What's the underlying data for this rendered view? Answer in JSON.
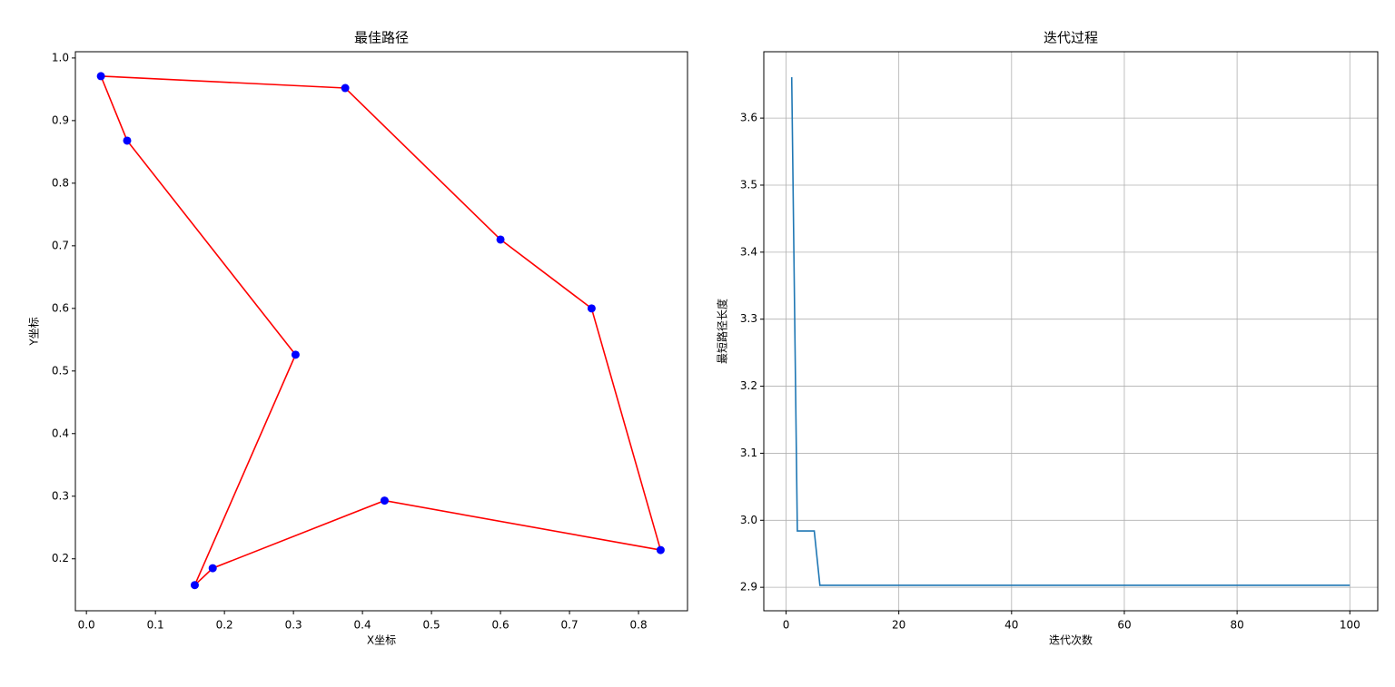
{
  "chart_data": [
    {
      "type": "route",
      "title": "最佳路径",
      "xlabel": "X坐标",
      "ylabel": "Y坐标",
      "x": [
        0.021,
        0.375,
        0.6,
        0.732,
        0.832,
        0.432,
        0.183,
        0.157,
        0.303,
        0.059
      ],
      "y": [
        0.971,
        0.952,
        0.71,
        0.6,
        0.214,
        0.293,
        0.185,
        0.158,
        0.526,
        0.868
      ],
      "line_color": "#ff0000",
      "marker_color": "#0000ff",
      "closed": true,
      "xlim": [
        -0.016,
        0.871
      ],
      "ylim": [
        0.117,
        1.01
      ],
      "xticks": [
        {
          "value": 0,
          "label": "0.0"
        },
        0.1,
        0.2,
        0.3,
        0.4,
        0.5,
        0.6,
        0.7,
        0.8
      ],
      "yticks": [
        0.2,
        0.3,
        0.4,
        0.5,
        0.6,
        0.7,
        0.8,
        0.9,
        {
          "value": 1,
          "label": "1.0"
        }
      ],
      "grid": false
    },
    {
      "type": "line",
      "title": "迭代过程",
      "xlabel": "迭代次数",
      "ylabel": "最短路径长度",
      "x": [
        1,
        2,
        3,
        4,
        5,
        6,
        7,
        8,
        9,
        10,
        11,
        12,
        13,
        14,
        15,
        16,
        17,
        18,
        19,
        20,
        21,
        22,
        23,
        24,
        25,
        26,
        27,
        28,
        29,
        30,
        31,
        32,
        33,
        34,
        35,
        36,
        37,
        38,
        39,
        40,
        41,
        42,
        43,
        44,
        45,
        46,
        47,
        48,
        49,
        50,
        51,
        52,
        53,
        54,
        55,
        56,
        57,
        58,
        59,
        60,
        61,
        62,
        63,
        64,
        65,
        66,
        67,
        68,
        69,
        70,
        71,
        72,
        73,
        74,
        75,
        76,
        77,
        78,
        79,
        80,
        81,
        82,
        83,
        84,
        85,
        86,
        87,
        88,
        89,
        90,
        91,
        92,
        93,
        94,
        95,
        96,
        97,
        98,
        99,
        100
      ],
      "values": [
        3.661,
        2.984,
        2.984,
        2.984,
        2.984,
        2.903,
        2.903,
        2.903,
        2.903,
        2.903,
        2.903,
        2.903,
        2.903,
        2.903,
        2.903,
        2.903,
        2.903,
        2.903,
        2.903,
        2.903,
        2.903,
        2.903,
        2.903,
        2.903,
        2.903,
        2.903,
        2.903,
        2.903,
        2.903,
        2.903,
        2.903,
        2.903,
        2.903,
        2.903,
        2.903,
        2.903,
        2.903,
        2.903,
        2.903,
        2.903,
        2.903,
        2.903,
        2.903,
        2.903,
        2.903,
        2.903,
        2.903,
        2.903,
        2.903,
        2.903,
        2.903,
        2.903,
        2.903,
        2.903,
        2.903,
        2.903,
        2.903,
        2.903,
        2.903,
        2.903,
        2.903,
        2.903,
        2.903,
        2.903,
        2.903,
        2.903,
        2.903,
        2.903,
        2.903,
        2.903,
        2.903,
        2.903,
        2.903,
        2.903,
        2.903,
        2.903,
        2.903,
        2.903,
        2.903,
        2.903,
        2.903,
        2.903,
        2.903,
        2.903,
        2.903,
        2.903,
        2.903,
        2.903,
        2.903,
        2.903,
        2.903,
        2.903,
        2.903,
        2.903,
        2.903,
        2.903,
        2.903,
        2.903,
        2.903,
        2.903
      ],
      "color": "#1f77b4",
      "xlim": [
        -3.95,
        104.95
      ],
      "ylim": [
        2.865,
        3.699
      ],
      "xticks": [
        0,
        20,
        40,
        60,
        80,
        100
      ],
      "yticks": [
        2.9,
        {
          "value": 3,
          "label": "3.0"
        },
        3.1,
        3.2,
        3.3,
        3.4,
        3.5,
        3.6
      ],
      "grid": true
    }
  ]
}
